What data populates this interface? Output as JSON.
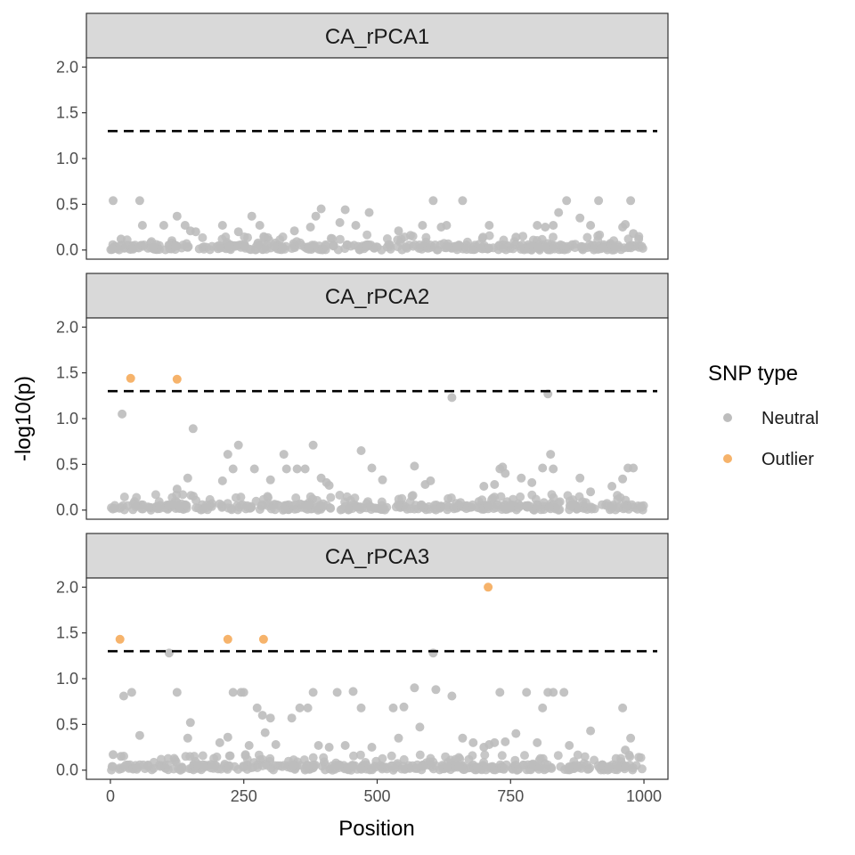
{
  "chart_data": {
    "type": "scatter",
    "xlabel": "Position",
    "ylabel": "-log10(p)",
    "xlim": [
      -45,
      1045
    ],
    "ylim": [
      -0.1,
      2.1
    ],
    "x_ticks": [
      0,
      250,
      500,
      750,
      1000
    ],
    "x_tick_labels": [
      "0",
      "250",
      "500",
      "750",
      "1000"
    ],
    "y_ticks": [
      0,
      0.5,
      1,
      1.5,
      2
    ],
    "y_tick_labels": [
      "0.0",
      "0.5",
      "1.0",
      "1.5",
      "2.0"
    ],
    "threshold": 1.3,
    "legend": {
      "title": "SNP type",
      "position": "right",
      "entries": [
        {
          "name": "Neutral",
          "color": "#bdbdbd"
        },
        {
          "name": "Outlier",
          "color": "#f6b36b"
        }
      ]
    },
    "panels": [
      {
        "title": "CA_rPCA1",
        "neutral_x": [
          5,
          20,
          55,
          60,
          100,
          125,
          140,
          150,
          160,
          210,
          240,
          265,
          280,
          345,
          375,
          385,
          395,
          430,
          440,
          460,
          485,
          540,
          585,
          605,
          620,
          630,
          660,
          710,
          760,
          800,
          815,
          830,
          840,
          855,
          880,
          900,
          915,
          960,
          965,
          975,
          980,
          990
        ],
        "neutral_y": [
          0.54,
          0.12,
          0.54,
          0.27,
          0.27,
          0.37,
          0.27,
          0.21,
          0.2,
          0.27,
          0.2,
          0.37,
          0.27,
          0.21,
          0.25,
          0.37,
          0.45,
          0.3,
          0.44,
          0.27,
          0.41,
          0.21,
          0.27,
          0.54,
          0.25,
          0.27,
          0.54,
          0.27,
          0.14,
          0.27,
          0.25,
          0.27,
          0.41,
          0.54,
          0.35,
          0.27,
          0.54,
          0.25,
          0.28,
          0.54,
          0.18,
          0.12
        ],
        "outlier_x": [],
        "outlier_y": []
      },
      {
        "title": "CA_rPCA2",
        "neutral_x": [
          22,
          125,
          145,
          155,
          210,
          220,
          230,
          240,
          270,
          300,
          325,
          330,
          350,
          365,
          380,
          395,
          405,
          410,
          470,
          490,
          510,
          570,
          590,
          600,
          640,
          700,
          720,
          730,
          735,
          740,
          770,
          790,
          810,
          820,
          825,
          830,
          880,
          900,
          940,
          960,
          970,
          980
        ],
        "neutral_y": [
          1.05,
          0.23,
          0.35,
          0.89,
          0.32,
          0.61,
          0.45,
          0.71,
          0.45,
          0.33,
          0.61,
          0.45,
          0.45,
          0.45,
          0.71,
          0.35,
          0.3,
          0.27,
          0.65,
          0.46,
          0.33,
          0.48,
          0.28,
          0.32,
          1.23,
          0.26,
          0.28,
          0.45,
          0.47,
          0.4,
          0.35,
          0.3,
          0.46,
          1.27,
          0.61,
          0.45,
          0.35,
          0.2,
          0.26,
          0.34,
          0.46,
          0.46
        ],
        "outlier_x": [
          38,
          125
        ],
        "outlier_y": [
          1.44,
          1.43
        ]
      },
      {
        "title": "CA_rPCA3",
        "neutral_x": [
          5,
          20,
          25,
          40,
          55,
          110,
          125,
          145,
          150,
          205,
          220,
          230,
          245,
          250,
          260,
          275,
          285,
          290,
          300,
          310,
          340,
          355,
          370,
          380,
          390,
          410,
          425,
          440,
          455,
          470,
          490,
          530,
          540,
          550,
          570,
          580,
          605,
          610,
          640,
          660,
          680,
          700,
          710,
          720,
          730,
          740,
          760,
          780,
          800,
          810,
          820,
          830,
          850,
          860,
          900,
          960,
          965,
          975
        ],
        "neutral_y": [
          0.17,
          0.15,
          0.81,
          0.85,
          0.38,
          1.28,
          0.85,
          0.35,
          0.52,
          0.3,
          0.36,
          0.85,
          0.85,
          0.85,
          0.27,
          0.68,
          0.6,
          0.41,
          0.57,
          0.28,
          0.57,
          0.68,
          0.68,
          0.85,
          0.27,
          0.25,
          0.85,
          0.27,
          0.86,
          0.68,
          0.25,
          0.68,
          0.35,
          0.69,
          0.9,
          0.47,
          1.28,
          0.88,
          0.81,
          0.35,
          0.3,
          0.25,
          0.28,
          0.3,
          0.85,
          0.31,
          0.4,
          0.85,
          0.3,
          0.68,
          0.85,
          0.85,
          0.85,
          0.27,
          0.43,
          0.68,
          0.22,
          0.35
        ],
        "outlier_x": [
          18,
          220,
          287,
          708
        ],
        "outlier_y": [
          1.43,
          1.43,
          1.43,
          2.0
        ]
      }
    ]
  }
}
